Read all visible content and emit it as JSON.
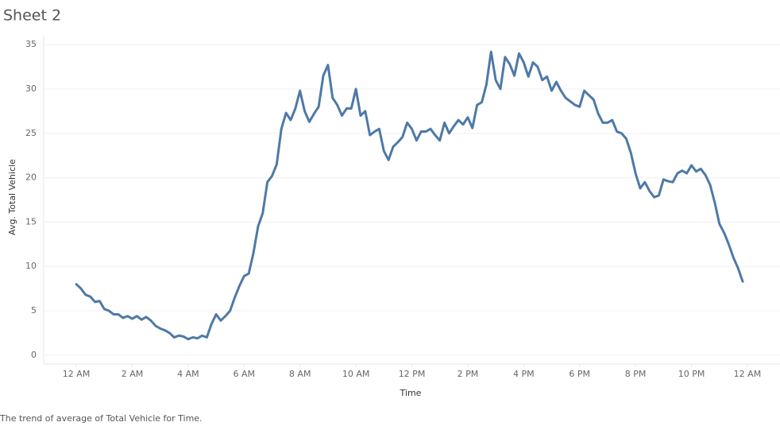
{
  "chart_data": {
    "type": "line",
    "title": "Sheet 2",
    "caption": "The trend of average of Total Vehicle for Time.",
    "x_label": "Time",
    "y_label": "Avg. Total Vehicle",
    "x": [
      0,
      10,
      20,
      30,
      40,
      50,
      60,
      70,
      80,
      90,
      100,
      110,
      120,
      130,
      140,
      150,
      160,
      170,
      180,
      190,
      200,
      210,
      220,
      230,
      240,
      250,
      260,
      270,
      280,
      290,
      300,
      310,
      320,
      330,
      340,
      350,
      360,
      370,
      380,
      390,
      400,
      410,
      420,
      430,
      440,
      450,
      460,
      470,
      480,
      490,
      500,
      510,
      520,
      530,
      540,
      550,
      560,
      570,
      580,
      590,
      600,
      610,
      620,
      630,
      640,
      650,
      660,
      670,
      680,
      690,
      700,
      710,
      720,
      730,
      740,
      750,
      760,
      770,
      780,
      790,
      800,
      810,
      820,
      830,
      840,
      850,
      860,
      870,
      880,
      890,
      900,
      910,
      920,
      930,
      940,
      950,
      960,
      970,
      980,
      990,
      1000,
      1010,
      1020,
      1030,
      1040,
      1050,
      1060,
      1070,
      1080,
      1090,
      1100,
      1110,
      1120,
      1130,
      1140,
      1150,
      1160,
      1170,
      1180,
      1190,
      1200,
      1210,
      1220,
      1230,
      1240,
      1250,
      1260,
      1270,
      1280,
      1290,
      1300,
      1310,
      1320,
      1330,
      1340,
      1350,
      1360,
      1370,
      1380,
      1390,
      1400,
      1410,
      1420,
      1430
    ],
    "series": [
      {
        "name": "Avg. Total Vehicle",
        "color": "#4e79a7",
        "values": [
          8.0,
          7.5,
          6.8,
          6.6,
          6.0,
          6.1,
          5.2,
          5.0,
          4.6,
          4.6,
          4.2,
          4.4,
          4.1,
          4.4,
          4.0,
          4.3,
          3.9,
          3.3,
          3.0,
          2.8,
          2.5,
          2.0,
          2.2,
          2.1,
          1.8,
          2.0,
          1.9,
          2.2,
          2.0,
          3.5,
          4.6,
          3.9,
          4.4,
          5.0,
          6.5,
          7.8,
          8.9,
          9.2,
          11.5,
          14.5,
          16.0,
          19.5,
          20.2,
          21.5,
          25.5,
          27.3,
          26.5,
          27.8,
          29.8,
          27.5,
          26.3,
          27.2,
          28.0,
          31.5,
          32.7,
          29.0,
          28.2,
          27.0,
          27.8,
          27.8,
          30.0,
          27.0,
          27.5,
          24.8,
          25.2,
          25.5,
          23.0,
          22.0,
          23.5,
          24.0,
          24.6,
          26.2,
          25.5,
          24.2,
          25.2,
          25.2,
          25.5,
          24.8,
          24.2,
          26.2,
          25.0,
          25.8,
          26.5,
          26.0,
          26.8,
          25.6,
          28.2,
          28.5,
          30.5,
          34.2,
          31.0,
          30.0,
          33.6,
          32.8,
          31.5,
          34.0,
          33.0,
          31.4,
          33.0,
          32.5,
          31.0,
          31.4,
          29.8,
          30.8,
          29.8,
          29.0,
          28.6,
          28.2,
          28.0,
          29.8,
          29.3,
          28.8,
          27.2,
          26.2,
          26.2,
          26.5,
          25.2,
          25.0,
          24.4,
          22.8,
          20.5,
          18.8,
          19.5,
          18.5,
          17.8,
          18.0,
          19.8,
          19.6,
          19.5,
          20.5,
          20.8,
          20.5,
          21.4,
          20.7,
          21.0,
          20.3,
          19.2,
          17.2,
          14.8,
          13.8,
          12.5,
          11.0,
          9.8,
          8.3
        ]
      }
    ],
    "xlim": [
      -70,
      1510
    ],
    "ylim": [
      -1,
      36
    ],
    "xticks": [
      {
        "value": 0,
        "label": "12 AM"
      },
      {
        "value": 120,
        "label": "2 AM"
      },
      {
        "value": 240,
        "label": "4 AM"
      },
      {
        "value": 360,
        "label": "6 AM"
      },
      {
        "value": 480,
        "label": "8 AM"
      },
      {
        "value": 600,
        "label": "10 AM"
      },
      {
        "value": 720,
        "label": "12 PM"
      },
      {
        "value": 840,
        "label": "2 PM"
      },
      {
        "value": 960,
        "label": "4 PM"
      },
      {
        "value": 1080,
        "label": "6 PM"
      },
      {
        "value": 1200,
        "label": "8 PM"
      },
      {
        "value": 1320,
        "label": "10 PM"
      },
      {
        "value": 1440,
        "label": "12 AM"
      }
    ],
    "yticks": [
      0,
      5,
      10,
      15,
      20,
      25,
      30,
      35
    ],
    "grid": true
  }
}
